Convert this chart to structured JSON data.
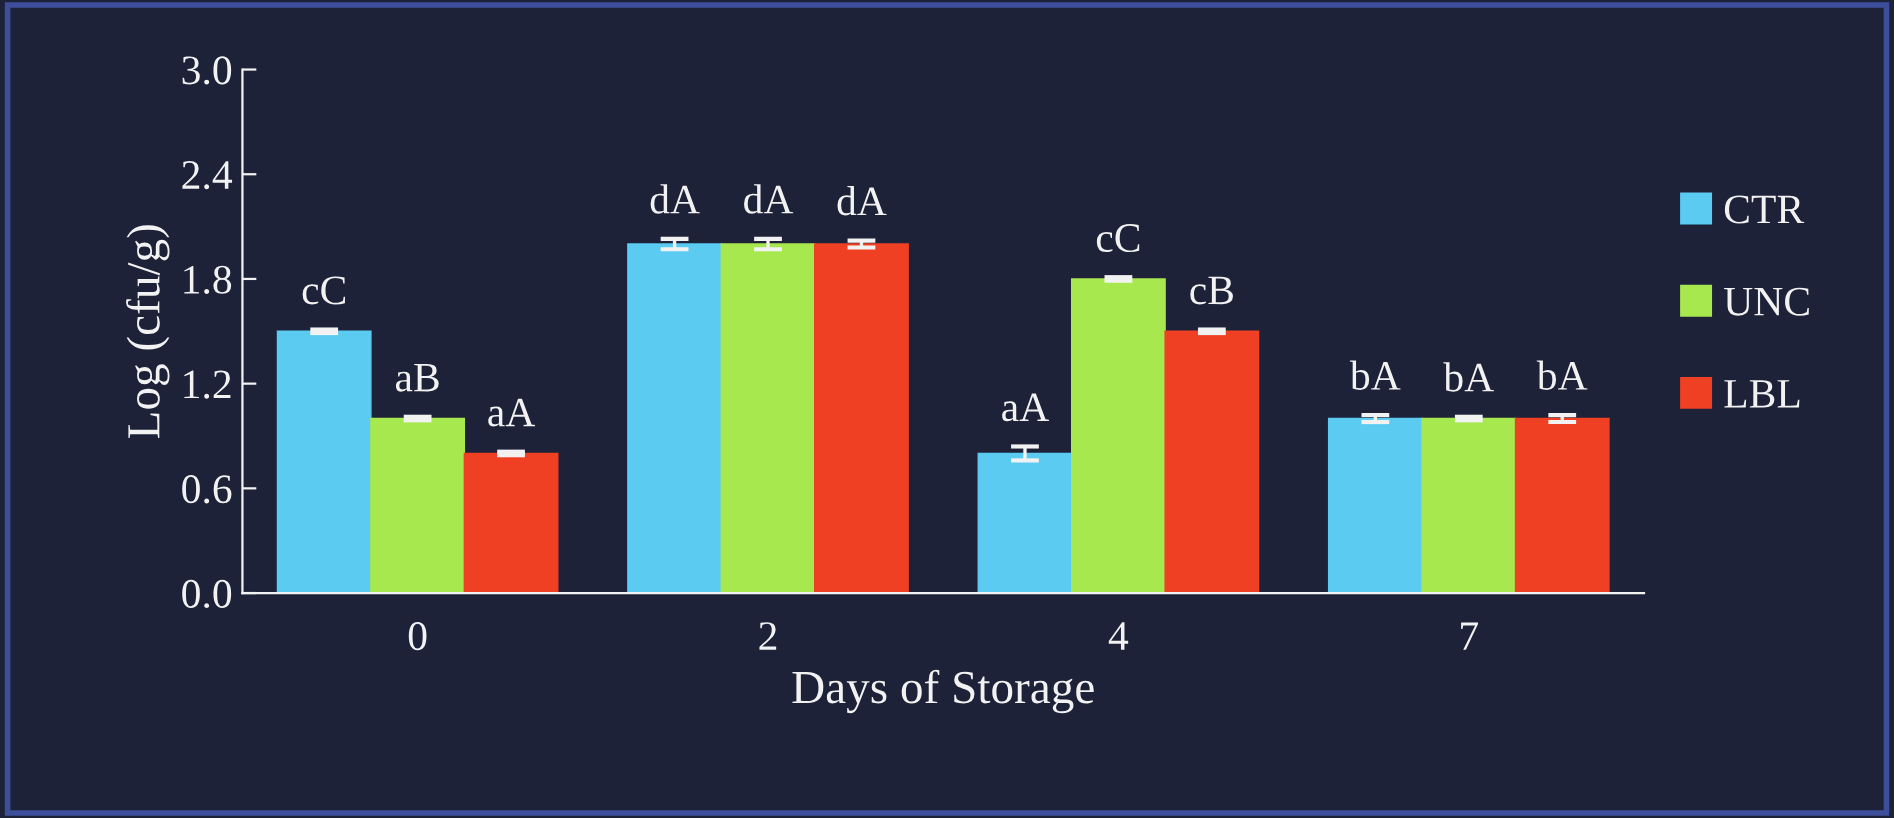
{
  "chart_data": {
    "type": "bar",
    "xlabel": "Days of Storage",
    "ylabel": "Log (cfu/g)",
    "categories": [
      "0",
      "2",
      "4",
      "7"
    ],
    "series": [
      {
        "name": "CTR",
        "color": "#5bcbf2",
        "values": [
          1.5,
          2.0,
          0.8,
          1.0
        ],
        "errors": [
          0.01,
          0.03,
          0.04,
          0.02
        ]
      },
      {
        "name": "UNC",
        "color": "#a8e84f",
        "values": [
          1.0,
          2.0,
          1.8,
          1.0
        ],
        "errors": [
          0.01,
          0.03,
          0.01,
          0.01
        ]
      },
      {
        "name": "LBL",
        "color": "#f04023",
        "values": [
          0.8,
          2.0,
          1.5,
          1.0
        ],
        "errors": [
          0.01,
          0.02,
          0.01,
          0.02
        ]
      }
    ],
    "ylim": [
      0,
      3.0
    ],
    "yticks": [
      {
        "value": 0,
        "label": "0.0"
      },
      0.6,
      1.2,
      1.8,
      2.4,
      {
        "value": 3,
        "label": "3.0"
      }
    ],
    "grid": false,
    "legend": "right",
    "annotations": [
      "cC",
      "aB",
      "aA",
      "dA",
      "dA",
      "dA",
      "aA",
      "cC",
      "cB",
      "bA",
      "bA",
      "bA"
    ]
  }
}
